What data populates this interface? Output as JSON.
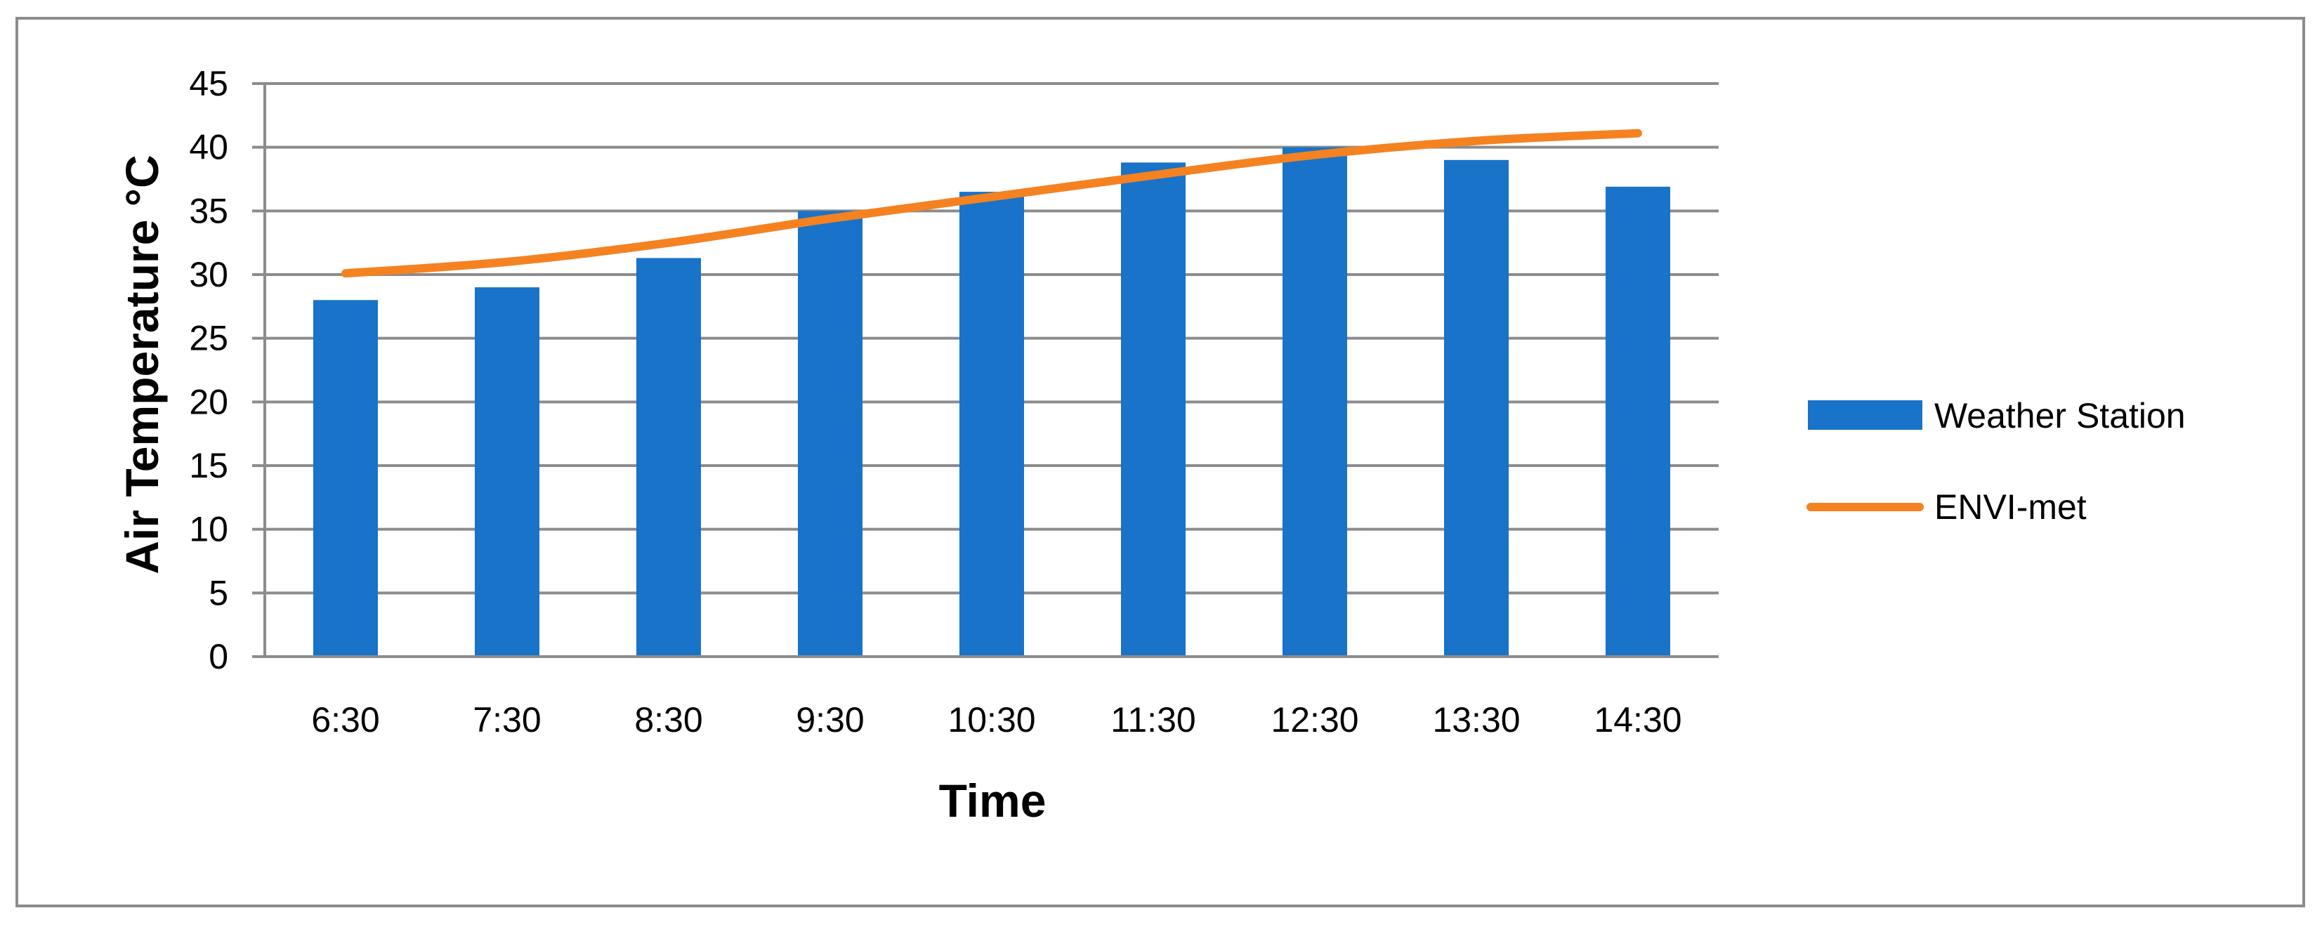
{
  "chart_data": {
    "type": "bar",
    "title": "",
    "xlabel": "Time",
    "ylabel": "Air Temperature °C",
    "categories": [
      "6:30",
      "7:30",
      "8:30",
      "9:30",
      "10:30",
      "11:30",
      "12:30",
      "13:30",
      "14:30"
    ],
    "ylim": [
      0,
      45
    ],
    "yticks": [
      0,
      5,
      10,
      15,
      20,
      25,
      30,
      35,
      40,
      45
    ],
    "grid": true,
    "legend_position": "right",
    "series": [
      {
        "name": "Weather Station",
        "type": "bar",
        "color": "#1873c9",
        "values": [
          28,
          29,
          31.3,
          35,
          36.5,
          38.8,
          40,
          39,
          36.9
        ]
      },
      {
        "name": "ENVI-met",
        "type": "line",
        "color": "#f58220",
        "values": [
          30.1,
          31,
          32.5,
          34.4,
          36.1,
          37.8,
          39.4,
          40.5,
          41.1
        ]
      }
    ]
  }
}
